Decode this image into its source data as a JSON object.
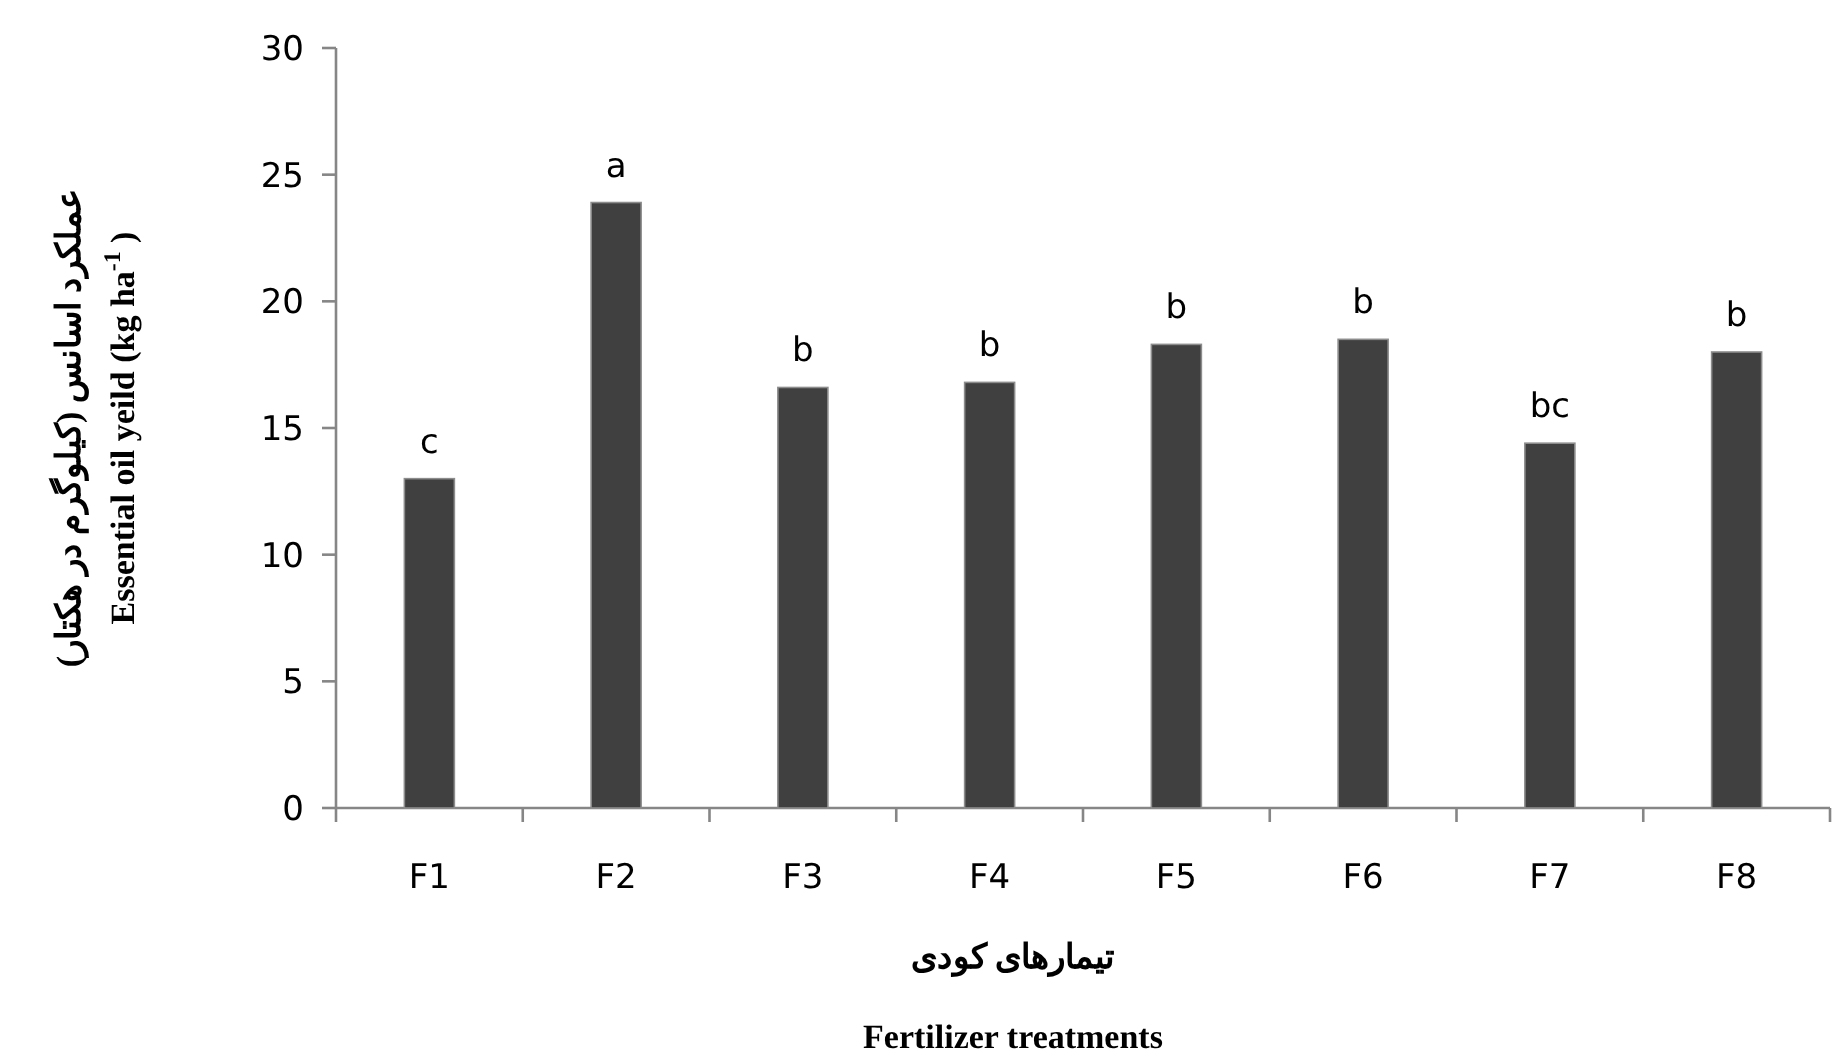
{
  "chart_data": {
    "type": "bar",
    "categories": [
      "F1",
      "F2",
      "F3",
      "F4",
      "F5",
      "F6",
      "F7",
      "F8"
    ],
    "values": [
      13.0,
      23.9,
      16.6,
      16.8,
      18.3,
      18.5,
      14.4,
      18.0
    ],
    "color": "#404040",
    "ylim": [
      0,
      30
    ],
    "yticks": [
      0,
      5,
      10,
      15,
      20,
      25,
      30
    ],
    "xlabel": "تیمارهای کودی\nFertilizer treatments",
    "ylabel": "عملکرد اسانس (کیلوگرم در هکتار)\nEssential oil yeild (kg ha$^{-1}$ )",
    "annotations": [
      {
        "text": "c",
        "x": "F1",
        "y": 13.0
      },
      {
        "text": "a",
        "x": "F2",
        "y": 23.9
      },
      {
        "text": "b",
        "x": "F3",
        "y": 16.6
      },
      {
        "text": "b",
        "x": "F4",
        "y": 16.8
      },
      {
        "text": "b",
        "x": "F5",
        "y": 18.3
      },
      {
        "text": "b",
        "x": "F6",
        "y": 18.5
      },
      {
        "text": "bc",
        "x": "F7",
        "y": 14.4
      },
      {
        "text": "b",
        "x": "F8",
        "y": 18.0
      }
    ]
  }
}
